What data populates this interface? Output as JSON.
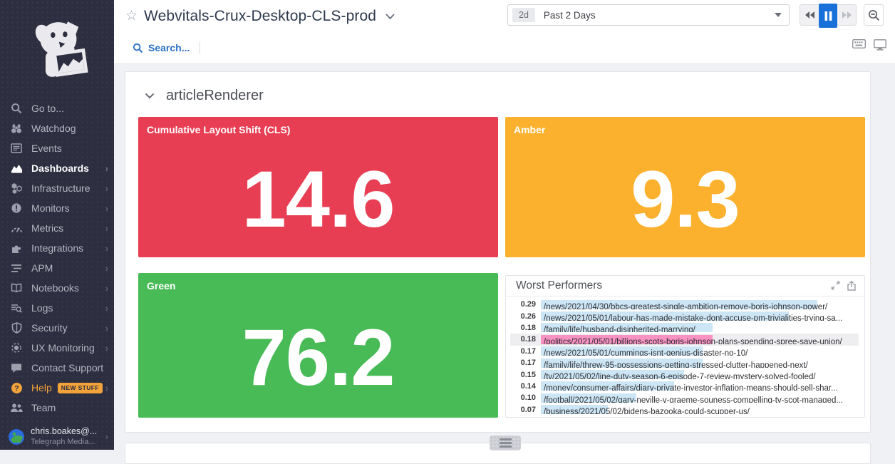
{
  "app": {
    "name": "Datadog",
    "accent_blue": "#1871d8",
    "sidebar_bg": "#2d2e3f",
    "help_orange": "#f2a33a"
  },
  "header": {
    "title": "Webvitals-Crux-Desktop-CLS-prod",
    "star_icon": "star-outline",
    "search_label": "Search...",
    "time_range": {
      "badge": "2d",
      "label": "Past 2 Days"
    },
    "playback": [
      "rewind",
      "pause",
      "fast-forward"
    ],
    "zoom_button": "zoom-out"
  },
  "sidebar": {
    "items": [
      {
        "label": "Go to...",
        "icon": "search",
        "active": false,
        "chevron": false
      },
      {
        "label": "Watchdog",
        "icon": "binoculars",
        "active": false,
        "chevron": false
      },
      {
        "label": "Events",
        "icon": "events",
        "active": false,
        "chevron": false
      },
      {
        "label": "Dashboards",
        "icon": "dashboards",
        "active": true,
        "chevron": true
      },
      {
        "label": "Infrastructure",
        "icon": "infrastructure",
        "active": false,
        "chevron": true
      },
      {
        "label": "Monitors",
        "icon": "monitors",
        "active": false,
        "chevron": true
      },
      {
        "label": "Metrics",
        "icon": "metrics",
        "active": false,
        "chevron": true
      },
      {
        "label": "Integrations",
        "icon": "integrations",
        "active": false,
        "chevron": true
      },
      {
        "label": "APM",
        "icon": "apm",
        "active": false,
        "chevron": true
      },
      {
        "label": "Notebooks",
        "icon": "notebooks",
        "active": false,
        "chevron": true
      },
      {
        "label": "Logs",
        "icon": "logs",
        "active": false,
        "chevron": true
      },
      {
        "label": "Security",
        "icon": "security",
        "active": false,
        "chevron": true
      },
      {
        "label": "UX Monitoring",
        "icon": "ux-monitoring",
        "active": false,
        "chevron": true
      },
      {
        "label": "Contact Support",
        "icon": "contact-support",
        "active": false,
        "chevron": false
      },
      {
        "label": "Help",
        "icon": "help",
        "active": false,
        "chevron": true,
        "accent": true,
        "badge": "NEW STUFF"
      },
      {
        "label": "Team",
        "icon": "team",
        "active": false,
        "chevron": false
      }
    ],
    "user": {
      "name": "chris.boakes@...",
      "org": "Telegraph Media...",
      "chevron": true
    }
  },
  "main": {
    "group_title": "articleRenderer",
    "widgets": [
      {
        "title": "Cumulative Layout Shift (CLS)",
        "value": "14.6",
        "color": "#e83e54"
      },
      {
        "title": "Amber",
        "value": "9.3",
        "color": "#fbb12e"
      },
      {
        "title": "Green",
        "value": "76.2",
        "color": "#48bb57"
      }
    ],
    "toplist_title": "Worst Performers",
    "toplist_icons": [
      "expand-icon",
      "export-icon"
    ]
  },
  "chart_data": [
    {
      "type": "query_value",
      "title": "Cumulative Layout Shift (CLS)",
      "value": 14.6,
      "color": "#e83e54"
    },
    {
      "type": "query_value",
      "title": "Amber",
      "value": 9.3,
      "color": "#fbb12e"
    },
    {
      "type": "query_value",
      "title": "Green",
      "value": 76.2,
      "color": "#48bb57"
    },
    {
      "type": "bar",
      "title": "Worst Performers",
      "orientation": "horizontal",
      "x_max": 0.33,
      "bar_color": "#cde6f5",
      "highlight_bar_color": "#f792c2",
      "rows": [
        {
          "value": 0.29,
          "label": "/news/2021/04/30/bbcs-greatest-single-ambition-remove-boris-johnson-power/",
          "highlight": false
        },
        {
          "value": 0.26,
          "label": "/news/2021/05/01/labour-has-made-mistake-dont-accuse-pm-trivialities-trying-sa...",
          "highlight": false
        },
        {
          "value": 0.18,
          "label": "/family/life/husband-disinherited-marrying/",
          "highlight": false
        },
        {
          "value": 0.18,
          "label": "/politics/2021/05/01/billions-scots-boris-johnson-plans-spending-spree-save-union/",
          "highlight": true
        },
        {
          "value": 0.17,
          "label": "/news/2021/05/01/cummings-isnt-genius-disaster-no-10/",
          "highlight": false
        },
        {
          "value": 0.17,
          "label": "/family/life/threw-95-possessions-getting-stressed-clutter-happened-next/",
          "highlight": false
        },
        {
          "value": 0.15,
          "label": "/tv/2021/05/02/line-duty-season-6-episode-7-review-mystery-solved-fooled/",
          "highlight": false
        },
        {
          "value": 0.14,
          "label": "/money/consumer-affairs/diary-private-investor-inflation-means-should-sell-shar...",
          "highlight": false
        },
        {
          "value": 0.1,
          "label": "/football/2021/05/02/gary-neville-v-graeme-souness-compelling-tv-scot-managed...",
          "highlight": false
        },
        {
          "value": 0.07,
          "label": "/business/2021/05/02/bidens-bazooka-could-scupper-us/",
          "highlight": false
        }
      ]
    }
  ]
}
